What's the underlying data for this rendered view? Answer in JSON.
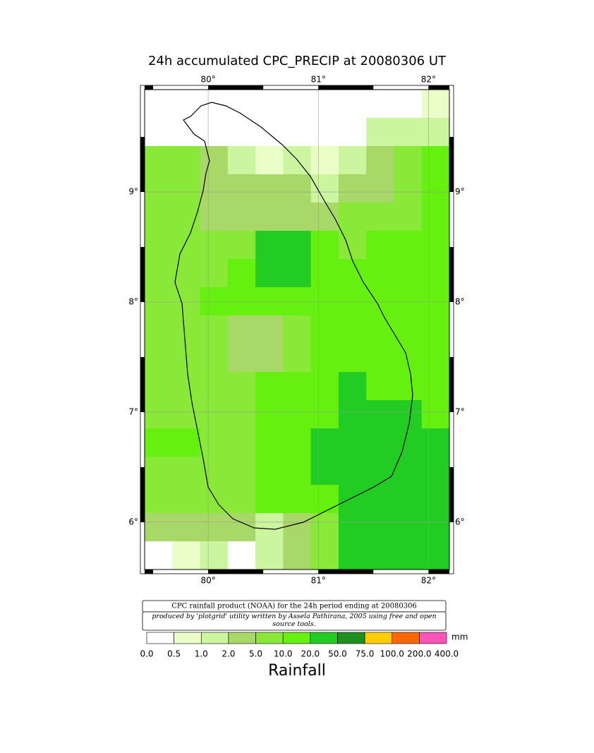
{
  "chart_data": {
    "type": "map-grid",
    "title": "24h accumulated CPC_PRECIP  at 20080306 UT",
    "xlim": [
      79.423,
      82.19
    ],
    "ylim": [
      5.57,
      9.93
    ],
    "xticks": [
      {
        "value": 80,
        "label": "80°"
      },
      {
        "value": 81,
        "label": "81°"
      },
      {
        "value": 82,
        "label": "82°"
      }
    ],
    "yticks": [
      {
        "value": 9,
        "label": "9°"
      },
      {
        "value": 8,
        "label": "8°"
      },
      {
        "value": 7,
        "label": "7°"
      },
      {
        "value": 6,
        "label": "6°"
      }
    ],
    "grid": true,
    "values": [
      [
        0,
        0,
        0,
        0,
        0,
        0,
        0,
        0,
        0,
        0,
        0.8
      ],
      [
        0,
        0,
        0,
        0,
        0,
        0,
        0,
        0,
        1.5,
        1.5,
        1.5
      ],
      [
        8,
        8,
        3,
        1,
        0.5,
        1,
        0.8,
        1.5,
        3,
        8,
        10
      ],
      [
        9,
        8,
        4,
        3,
        3,
        3,
        1.5,
        2,
        3,
        6,
        10
      ],
      [
        8,
        6,
        4,
        3,
        3,
        3,
        4,
        6,
        5,
        8,
        10
      ],
      [
        8,
        6,
        5,
        8,
        20,
        20,
        10,
        8,
        10,
        12,
        12
      ],
      [
        8,
        7,
        8,
        10,
        20,
        20,
        12,
        10,
        12,
        15,
        15
      ],
      [
        8,
        8,
        10,
        10,
        12,
        12,
        10,
        12,
        15,
        15,
        15
      ],
      [
        8,
        8,
        8,
        4,
        4,
        6,
        10,
        15,
        15,
        15,
        15
      ],
      [
        8,
        8,
        6,
        4,
        3,
        8,
        12,
        18,
        18,
        15,
        15
      ],
      [
        6,
        6,
        8,
        8,
        10,
        12,
        15,
        20,
        18,
        15,
        15
      ],
      [
        8,
        8,
        8,
        8,
        10,
        12,
        18,
        25,
        25,
        20,
        15
      ],
      [
        10,
        10,
        8,
        8,
        10,
        12,
        20,
        30,
        35,
        25,
        20
      ],
      [
        8,
        8,
        8,
        8,
        10,
        12,
        20,
        30,
        35,
        25,
        20
      ],
      [
        8,
        8,
        8,
        8,
        10,
        12,
        18,
        25,
        30,
        25,
        20
      ],
      [
        3,
        3,
        2,
        2,
        1.5,
        3,
        8,
        20,
        25,
        25,
        20
      ],
      [
        0,
        0.5,
        1,
        0,
        1,
        3,
        8,
        20,
        20,
        20,
        20
      ]
    ],
    "levels": [
      {
        "value": 0,
        "label": "0.0"
      },
      {
        "value": 0.5,
        "label": "0.5"
      },
      {
        "value": 1,
        "label": "1.0"
      },
      {
        "value": 2,
        "label": "2.0"
      },
      {
        "value": 5,
        "label": "5.0"
      },
      {
        "value": 10,
        "label": "10.0"
      },
      {
        "value": 20,
        "label": "20.0"
      },
      {
        "value": 50,
        "label": "50.0"
      },
      {
        "value": 75,
        "label": "75.0"
      },
      {
        "value": 100,
        "label": "100.0"
      },
      {
        "value": 200,
        "label": "200.0"
      },
      {
        "value": 400,
        "label": "400.0"
      }
    ],
    "colors": [
      "#ffffff",
      "#eaffc8",
      "#ccf5a0",
      "#a8d868",
      "#8ae838",
      "#66f010",
      "#22cc22",
      "#1f8f1f",
      "#ffcc00",
      "#ff6600",
      "#ff55bb"
    ],
    "unit": "mm",
    "legend_title": "Rainfall",
    "caption": "CPC rainfall product (NOAA) for the 24h period ending at 20080306",
    "credit": "produced by 'plotgrid' utility written by Assela Pathirana, 2005 using free and open source tools."
  }
}
